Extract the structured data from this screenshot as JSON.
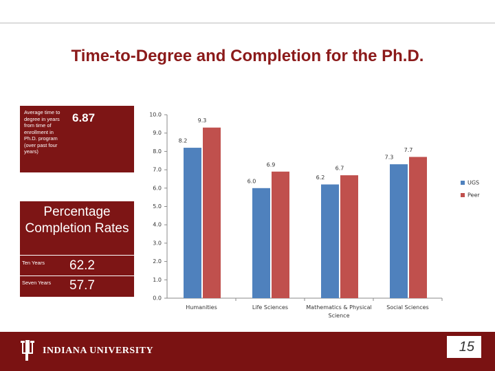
{
  "slide": {
    "title": "Time-to-Degree and Completion for the Ph.D.",
    "time_label": "Average time to degree in years from time of enrollment in Ph.D. program (over past four years)",
    "time_value": 6.87,
    "completion_title": "Percentage Completion Rates",
    "rates": [
      {
        "label": "Ten Years",
        "value": 62.2
      },
      {
        "label": "Seven Years",
        "value": 57.7
      }
    ],
    "footer": "INDIANA UNIVERSITY",
    "page_number": 15
  },
  "chart_data": {
    "type": "bar",
    "categories": [
      "Humanities",
      "Life Sciences",
      "Mathematics & Physical Science",
      "Social Sciences"
    ],
    "series": [
      {
        "name": "UGS",
        "color": "#4f81bd",
        "values": [
          8.2,
          6.0,
          6.2,
          7.3
        ],
        "value_labels": [
          "8.2",
          "6.0",
          "6.2",
          "7.3"
        ]
      },
      {
        "name": "Peer",
        "color": "#c0504d",
        "values": [
          9.3,
          6.9,
          6.7,
          7.7
        ],
        "value_labels": [
          "9.3",
          "6.9",
          "6.7",
          "7.7"
        ]
      }
    ],
    "ylim": [
      0,
      10
    ],
    "yticks": [
      {
        "value": 0,
        "label": "0.0"
      },
      {
        "value": 1,
        "label": "1.0"
      },
      {
        "value": 2,
        "label": "2.0"
      },
      {
        "value": 3,
        "label": "3.0"
      },
      {
        "value": 4,
        "label": "4.0"
      },
      {
        "value": 5,
        "label": "5.0"
      },
      {
        "value": 6,
        "label": "6.0"
      },
      {
        "value": 7,
        "label": "7.0"
      },
      {
        "value": 8,
        "label": "8.0"
      },
      {
        "value": 9,
        "label": "9.0"
      },
      {
        "value": 10,
        "label": "10.0"
      }
    ],
    "legend": "right"
  }
}
